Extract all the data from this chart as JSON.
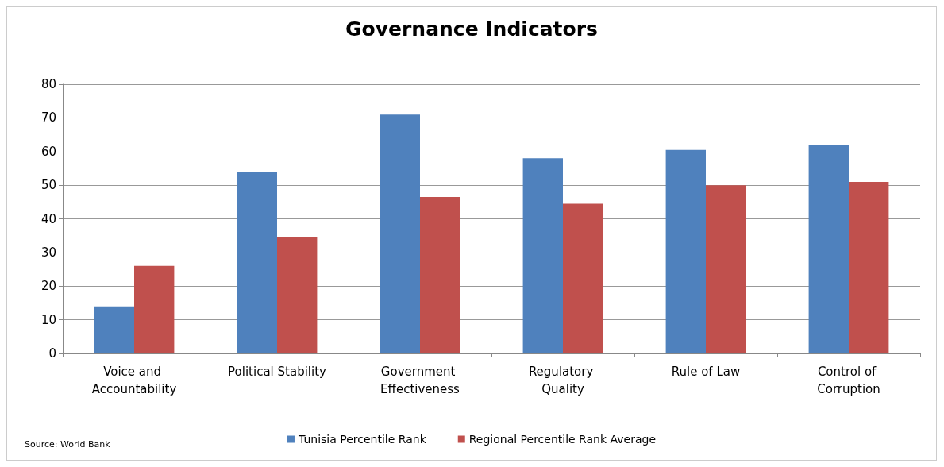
{
  "chart_data": {
    "type": "bar",
    "title": "Governance Indicators",
    "categories": [
      "Voice and Accountability",
      "Political Stability",
      "Government Effectiveness",
      "Regulatory Quality",
      "Rule of Law",
      "Control of Corruption"
    ],
    "series": [
      {
        "name": "Tunisia Percentile Rank",
        "color": "#4f81bd",
        "values": [
          14,
          54,
          71,
          58,
          60.5,
          62
        ]
      },
      {
        "name": "Regional Percentile Rank Average",
        "color": "#c0504d",
        "values": [
          26,
          34.7,
          46.5,
          44.5,
          50,
          51
        ]
      }
    ],
    "ylim": [
      0,
      80
    ],
    "yticks": [
      0,
      10,
      20,
      30,
      40,
      50,
      60,
      70,
      80
    ],
    "grid": "y",
    "legend": "bottom",
    "annotations": [
      "Source: World Bank"
    ]
  }
}
